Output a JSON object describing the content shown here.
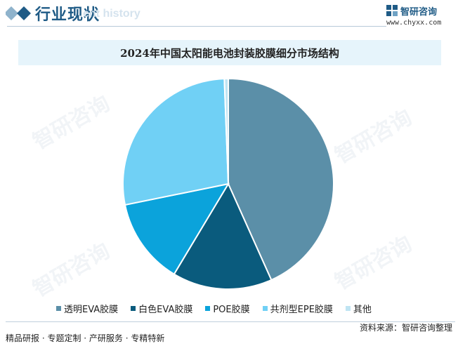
{
  "header": {
    "title": "行业现状",
    "subtitle": "ent history"
  },
  "brand": {
    "name": "智研咨询",
    "url": "www.chyxx.com",
    "logo_icon": "chyxx-logo-icon"
  },
  "watermark": "智研咨询",
  "chart_data": {
    "type": "pie",
    "title": "2024年中国太阳能电池封装胶膜细分市场结构",
    "categories": [
      "透明EVA胶膜",
      "白色EVA胶膜",
      "POE胶膜",
      "共剂型EPE胶膜",
      "其他"
    ],
    "values": [
      43.3,
      15.3,
      13.2,
      27.6,
      0.6
    ],
    "colors": [
      "#5b8fa8",
      "#0a5b7d",
      "#0ba3db",
      "#70d0f5",
      "#bfe4f3"
    ],
    "start_angle_deg": 0,
    "direction": "clockwise",
    "legend_position": "bottom"
  },
  "footer": {
    "services": "精品研报 · 专题定制 · 产研服务 · 专精特新",
    "source": "资料来源：智研咨询整理"
  }
}
